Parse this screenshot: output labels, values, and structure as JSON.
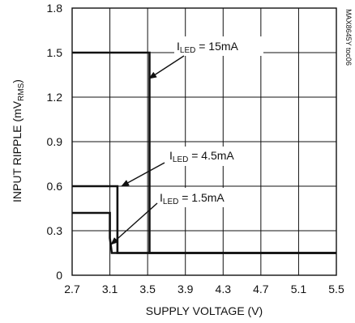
{
  "chart_data": {
    "type": "line",
    "title": "",
    "xlabel": "SUPPLY VOLTAGE (V)",
    "ylabel_main": "INPUT RIPPLE (mV",
    "ylabel_sub": "RMS",
    "ylabel_end": ")",
    "xlim": [
      2.7,
      5.5
    ],
    "ylim": [
      0,
      1.8
    ],
    "xticks": [
      2.7,
      3.1,
      3.5,
      3.9,
      4.3,
      4.7,
      5.1,
      5.5
    ],
    "yticks": [
      0,
      0.3,
      0.6,
      0.9,
      1.2,
      1.5,
      1.8
    ],
    "xtick_labels": [
      "2.7",
      "3.1",
      "3.5",
      "3.9",
      "4.3",
      "4.7",
      "5.1",
      "5.5"
    ],
    "ytick_labels": [
      "0",
      "0.3",
      "0.6",
      "0.9",
      "1.2",
      "1.5",
      "1.8"
    ],
    "grid": true,
    "series": [
      {
        "name": "ILED = 15mA",
        "points": [
          [
            2.7,
            1.5
          ],
          [
            3.52,
            1.5
          ],
          [
            3.52,
            0.15
          ],
          [
            5.5,
            0.15
          ]
        ]
      },
      {
        "name": "ILED = 4.5mA",
        "points": [
          [
            2.7,
            0.6
          ],
          [
            3.18,
            0.6
          ],
          [
            3.18,
            0.15
          ],
          [
            5.5,
            0.15
          ]
        ]
      },
      {
        "name": "ILED = 1.5mA",
        "points": [
          [
            2.7,
            0.42
          ],
          [
            3.1,
            0.42
          ],
          [
            3.1,
            0.25
          ],
          [
            3.12,
            0.15
          ],
          [
            5.5,
            0.15
          ]
        ]
      }
    ],
    "annotations": [
      {
        "main": "I",
        "sub": "LED",
        "rest": " = 15mA"
      },
      {
        "main": "I",
        "sub": "LED",
        "rest": " = 4.5mA"
      },
      {
        "main": "I",
        "sub": "LED",
        "rest": " = 1.5mA"
      }
    ],
    "side_label": "MAX8645Y toc06"
  }
}
